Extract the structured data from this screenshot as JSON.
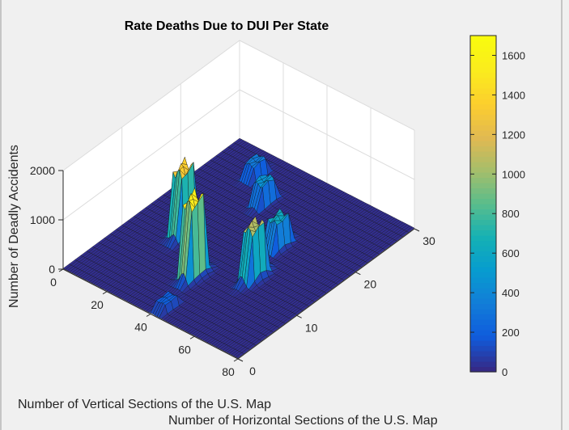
{
  "chart_data": {
    "type": "surface",
    "title": "Rate Deaths Due to DUI Per State",
    "xlabel": "Number of Vertical Sections of the U.S. Map",
    "ylabel": "Number of Horizontal Sections of the U.S. Map",
    "zlabel": "Number of Deadly Accidents",
    "xlim": [
      0,
      80
    ],
    "ylim": [
      0,
      30
    ],
    "zlim": [
      0,
      2000
    ],
    "x_ticks": [
      "0",
      "20",
      "40",
      "60",
      "80"
    ],
    "y_ticks": [
      "0",
      "10",
      "20",
      "30"
    ],
    "z_ticks": [
      "0",
      "1000",
      "2000"
    ],
    "colormap": "parula",
    "grid": true,
    "colorbar": {
      "placement": "right",
      "range": [
        0,
        1700
      ],
      "ticks": [
        "0",
        "200",
        "400",
        "600",
        "800",
        "1000",
        "1200",
        "1400",
        "1600"
      ]
    },
    "peaks": [
      {
        "x": 20,
        "y": 13,
        "z": 1450
      },
      {
        "x": 38,
        "y": 8,
        "z": 1680
      },
      {
        "x": 55,
        "y": 12,
        "z": 1150
      },
      {
        "x": 50,
        "y": 18,
        "z": 650
      },
      {
        "x": 30,
        "y": 23,
        "z": 500
      },
      {
        "x": 18,
        "y": 26,
        "z": 350
      },
      {
        "x": 42,
        "y": 2,
        "z": 200
      }
    ]
  }
}
